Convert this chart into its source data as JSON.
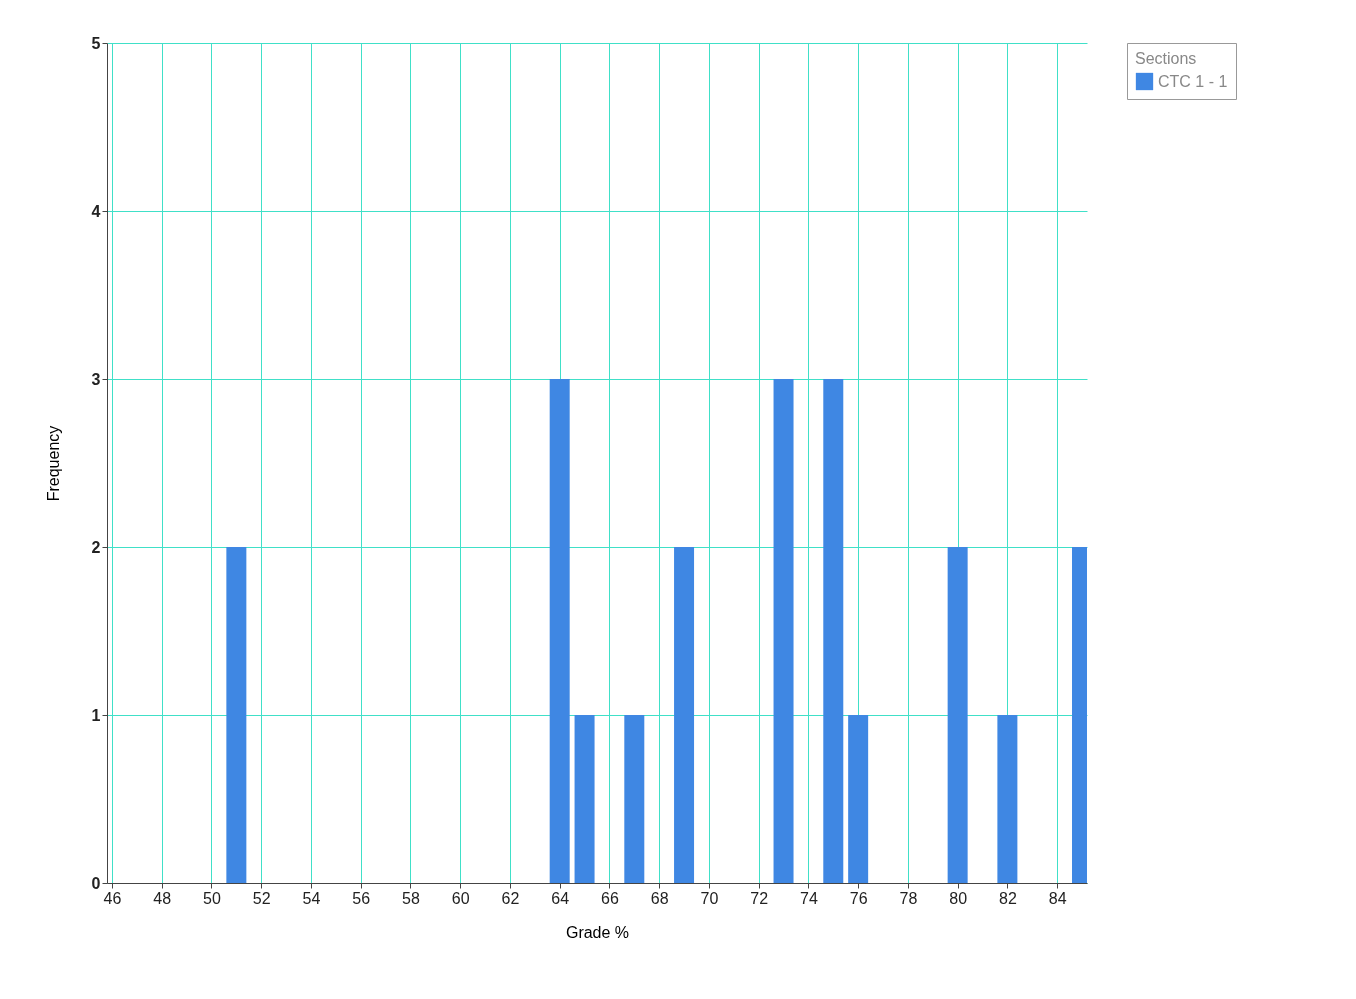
{
  "chart_data": {
    "type": "bar",
    "xlabel": "Grade %",
    "ylabel": "Frequency",
    "legend_title": "Sections",
    "x": [
      51,
      64,
      65,
      67,
      69,
      73,
      75,
      76,
      80,
      82,
      85
    ],
    "series": [
      {
        "name": "CTC 1 - 1",
        "color": "#3f87e3",
        "values": [
          2,
          3,
          1,
          1,
          2,
          3,
          3,
          1,
          2,
          1,
          2
        ]
      }
    ],
    "xlim": [
      46,
      85
    ],
    "xticks": [
      46,
      48,
      50,
      52,
      54,
      56,
      58,
      60,
      62,
      64,
      66,
      68,
      70,
      72,
      74,
      76,
      78,
      80,
      82,
      84
    ],
    "ylim": [
      0,
      5
    ],
    "yticks": [
      0,
      1,
      2,
      3,
      4,
      5
    ],
    "grid": true,
    "legend": "top right"
  }
}
